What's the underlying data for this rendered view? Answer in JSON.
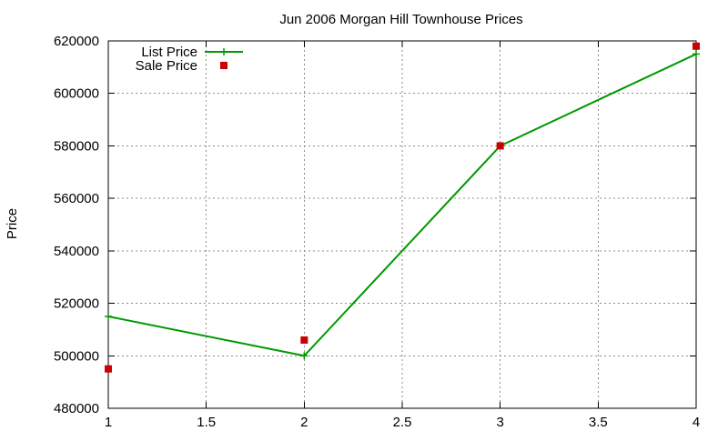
{
  "chart_data": {
    "type": "line",
    "title": "Jun 2006 Morgan Hill Townhouse Prices",
    "xlabel": "",
    "ylabel": "Price",
    "xlim": [
      1,
      4
    ],
    "ylim": [
      480000,
      620000
    ],
    "x_ticks": [
      1,
      1.5,
      2,
      2.5,
      3,
      3.5,
      4
    ],
    "x_tick_labels": [
      "1",
      "1.5",
      "2",
      "2.5",
      "3",
      "3.5",
      "4"
    ],
    "y_ticks": [
      480000,
      500000,
      520000,
      540000,
      560000,
      580000,
      600000,
      620000
    ],
    "y_tick_labels": [
      "480000",
      "500000",
      "520000",
      "540000",
      "560000",
      "580000",
      "600000",
      "620000"
    ],
    "grid": true,
    "legend_position": "top-left",
    "series": [
      {
        "name": "List Price",
        "style": "line+cross",
        "color": "#009900",
        "x": [
          1,
          2,
          3,
          4
        ],
        "values": [
          515000,
          500000,
          580000,
          615000
        ]
      },
      {
        "name": "Sale Price",
        "style": "square",
        "color": "#cc0000",
        "x": [
          1,
          2,
          3,
          4
        ],
        "values": [
          495000,
          506000,
          580000,
          618000
        ]
      }
    ]
  }
}
